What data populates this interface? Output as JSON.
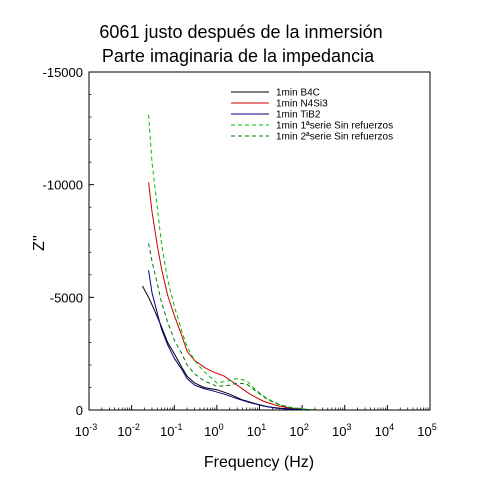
{
  "chart_data": {
    "type": "line",
    "title": "6061 justo después de la inmersión",
    "subtitle": "Parte imaginaria de la impedancia",
    "xlabel": "Frequency (Hz)",
    "ylabel": "Z''",
    "x_scale": "log",
    "xlim": [
      0.001,
      100000
    ],
    "ylim": [
      0,
      -15000
    ],
    "x_ticks": [
      {
        "base": "10",
        "exp": "-3"
      },
      {
        "base": "10",
        "exp": "-2"
      },
      {
        "base": "10",
        "exp": "-1"
      },
      {
        "base": "10",
        "exp": "0"
      },
      {
        "base": "10",
        "exp": "1"
      },
      {
        "base": "10",
        "exp": "2"
      },
      {
        "base": "10",
        "exp": "3"
      },
      {
        "base": "10",
        "exp": "4"
      },
      {
        "base": "10",
        "exp": "5"
      }
    ],
    "y_ticks": [
      {
        "value": 0,
        "label": "0"
      },
      {
        "value": -5000,
        "label": "-5000"
      },
      {
        "value": -10000,
        "label": "-10000"
      },
      {
        "value": -15000,
        "label": "-15000"
      }
    ],
    "grid": false,
    "legend_position": "top-right",
    "series": [
      {
        "name": "1min B4C",
        "color": "#000000",
        "dash": "solid",
        "points": [
          [
            0.018,
            -5500
          ],
          [
            0.025,
            -5000
          ],
          [
            0.035,
            -4400
          ],
          [
            0.05,
            -3700
          ],
          [
            0.07,
            -3000
          ],
          [
            0.1,
            -2500
          ],
          [
            0.15,
            -1900
          ],
          [
            0.2,
            -1500
          ],
          [
            0.3,
            -1200
          ],
          [
            0.5,
            -1000
          ],
          [
            1,
            -900
          ],
          [
            2,
            -700
          ],
          [
            4,
            -450
          ],
          [
            8,
            -280
          ],
          [
            15,
            -150
          ],
          [
            30,
            -80
          ],
          [
            60,
            -40
          ],
          [
            120,
            -15
          ],
          [
            200,
            -5
          ]
        ]
      },
      {
        "name": "1min N4Si3",
        "color": "#cc0000",
        "dash": "solid",
        "points": [
          [
            0.025,
            -10100
          ],
          [
            0.03,
            -8800
          ],
          [
            0.04,
            -7300
          ],
          [
            0.05,
            -6300
          ],
          [
            0.07,
            -5100
          ],
          [
            0.1,
            -4200
          ],
          [
            0.15,
            -3300
          ],
          [
            0.2,
            -2600
          ],
          [
            0.3,
            -2200
          ],
          [
            0.5,
            -1900
          ],
          [
            0.8,
            -1700
          ],
          [
            1.5,
            -1500
          ],
          [
            3,
            -1100
          ],
          [
            6,
            -700
          ],
          [
            12,
            -400
          ],
          [
            25,
            -200
          ],
          [
            50,
            -90
          ],
          [
            100,
            -30
          ],
          [
            200,
            -10
          ]
        ]
      },
      {
        "name": "1min TiB2",
        "color": "#000080",
        "dash": "solid",
        "points": [
          [
            0.025,
            -6200
          ],
          [
            0.03,
            -5200
          ],
          [
            0.04,
            -4300
          ],
          [
            0.05,
            -3600
          ],
          [
            0.07,
            -2900
          ],
          [
            0.1,
            -2300
          ],
          [
            0.15,
            -1800
          ],
          [
            0.2,
            -1400
          ],
          [
            0.3,
            -1100
          ],
          [
            0.5,
            -950
          ],
          [
            0.8,
            -850
          ],
          [
            1.5,
            -700
          ],
          [
            3,
            -500
          ],
          [
            6,
            -330
          ],
          [
            12,
            -180
          ],
          [
            25,
            -80
          ],
          [
            60,
            -30
          ],
          [
            150,
            -10
          ]
        ]
      },
      {
        "name": "1min 1ªserie Sin refuerzos",
        "color": "#00bb00",
        "dash": "dashed",
        "points": [
          [
            0.025,
            -13100
          ],
          [
            0.03,
            -11000
          ],
          [
            0.04,
            -9000
          ],
          [
            0.05,
            -7400
          ],
          [
            0.07,
            -5800
          ],
          [
            0.1,
            -4600
          ],
          [
            0.15,
            -3500
          ],
          [
            0.2,
            -2800
          ],
          [
            0.3,
            -2200
          ],
          [
            0.5,
            -1700
          ],
          [
            1,
            -1200
          ],
          [
            2,
            -1300
          ],
          [
            3,
            -1400
          ],
          [
            5,
            -1300
          ],
          [
            8,
            -900
          ],
          [
            15,
            -500
          ],
          [
            30,
            -230
          ],
          [
            60,
            -90
          ],
          [
            120,
            -30
          ],
          [
            200,
            -10
          ]
        ]
      },
      {
        "name": "1min 2ªserie Sin refuerzos",
        "color": "#007700",
        "dash": "dashed",
        "points": [
          [
            0.025,
            -7400
          ],
          [
            0.03,
            -6600
          ],
          [
            0.04,
            -5600
          ],
          [
            0.05,
            -4800
          ],
          [
            0.07,
            -3900
          ],
          [
            0.1,
            -3100
          ],
          [
            0.15,
            -2500
          ],
          [
            0.2,
            -2000
          ],
          [
            0.3,
            -1600
          ],
          [
            0.5,
            -1300
          ],
          [
            1,
            -1050
          ],
          [
            2,
            -1100
          ],
          [
            3,
            -1200
          ],
          [
            5,
            -1150
          ],
          [
            8,
            -850
          ],
          [
            15,
            -480
          ],
          [
            30,
            -220
          ],
          [
            60,
            -90
          ],
          [
            120,
            -30
          ],
          [
            200,
            -10
          ]
        ]
      }
    ]
  }
}
